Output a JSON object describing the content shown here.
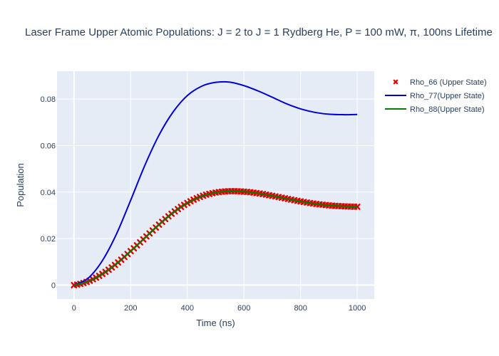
{
  "chart_data": {
    "type": "line",
    "title": "Laser Frame Upper Atomic Populations: J = 2 to J = 1 Rydberg He, P = 100 mW, π, 100ns Lifetime",
    "xlabel": "Time (ns)",
    "ylabel": "Population",
    "xlim": [
      -60,
      1060
    ],
    "ylim": [
      -0.006,
      0.092
    ],
    "x_ticks": [
      0,
      200,
      400,
      600,
      800,
      1000
    ],
    "y_ticks": [
      0,
      0.02,
      0.04,
      0.06,
      0.08
    ],
    "y_tick_labels": [
      "0",
      "0.02",
      "0.04",
      "0.06",
      "0.08"
    ],
    "grid": true,
    "legend_position": "right",
    "series": [
      {
        "name": "Rho_66 (Upper State)",
        "mode": "markers",
        "marker": "x",
        "color": "#e00000",
        "x": [
          0,
          50,
          100,
          150,
          200,
          250,
          300,
          350,
          400,
          450,
          500,
          550,
          600,
          650,
          700,
          750,
          800,
          850,
          900,
          950,
          1000
        ],
        "y": [
          0.0,
          0.0016,
          0.0048,
          0.0092,
          0.0146,
          0.0203,
          0.026,
          0.0312,
          0.0353,
          0.0382,
          0.0398,
          0.0404,
          0.0402,
          0.0395,
          0.0384,
          0.0372,
          0.036,
          0.035,
          0.0343,
          0.0339,
          0.0337
        ]
      },
      {
        "name": "Rho_77(Upper State)",
        "mode": "lines",
        "color": "#0000dd",
        "x": [
          0,
          50,
          100,
          150,
          200,
          250,
          300,
          350,
          400,
          450,
          500,
          550,
          600,
          650,
          700,
          750,
          800,
          850,
          900,
          950,
          1000
        ],
        "y": [
          0.0,
          0.003,
          0.0105,
          0.022,
          0.0365,
          0.0515,
          0.0645,
          0.0745,
          0.0815,
          0.0855,
          0.0872,
          0.0873,
          0.0858,
          0.0835,
          0.0808,
          0.078,
          0.0758,
          0.0743,
          0.0735,
          0.0733,
          0.0734
        ]
      },
      {
        "name": "Rho_88(Upper State)",
        "mode": "lines",
        "color": "#008000",
        "x": [
          0,
          50,
          100,
          150,
          200,
          250,
          300,
          350,
          400,
          450,
          500,
          550,
          600,
          650,
          700,
          750,
          800,
          850,
          900,
          950,
          1000
        ],
        "y": [
          0.0,
          0.0016,
          0.0048,
          0.0092,
          0.0146,
          0.0203,
          0.026,
          0.0312,
          0.0353,
          0.0382,
          0.0398,
          0.0404,
          0.0402,
          0.0395,
          0.0384,
          0.0372,
          0.036,
          0.035,
          0.0343,
          0.0339,
          0.0337
        ]
      }
    ]
  }
}
